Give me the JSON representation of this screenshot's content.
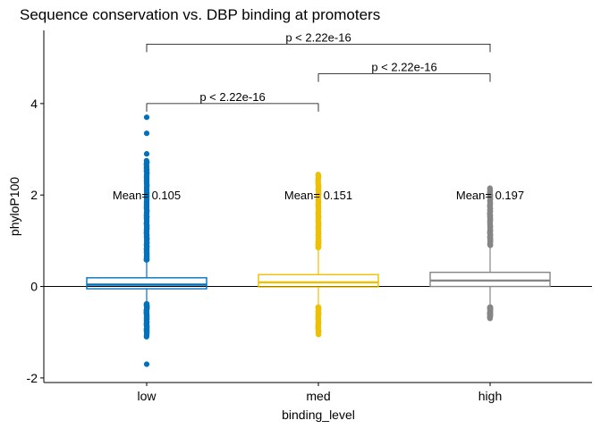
{
  "chart_data": {
    "type": "boxplot",
    "title": "Sequence conservation vs. DBP binding at promoters",
    "xlabel": "binding_level",
    "ylabel": "phyloP100",
    "ylim": [
      -2.1,
      5.6
    ],
    "yticks": [
      -2,
      0,
      2,
      4
    ],
    "ytick_labels": [
      "-2",
      "0",
      "2",
      "4"
    ],
    "reference_line": 0,
    "categories": [
      "low",
      "med",
      "high"
    ],
    "colors": [
      "#0072BD",
      "#EFC000",
      "#868686"
    ],
    "boxes": [
      {
        "name": "low",
        "q1": -0.05,
        "median": 0.04,
        "q3": 0.19,
        "whisker_low": -0.35,
        "whisker_high": 0.55,
        "outlier_low_range": [
          -1.1,
          -0.38
        ],
        "outlier_high_range": [
          0.58,
          2.75
        ],
        "extreme_outliers": [
          -1.7,
          2.9,
          3.35,
          3.7
        ]
      },
      {
        "name": "med",
        "q1": -0.01,
        "median": 0.09,
        "q3": 0.26,
        "whisker_low": -0.4,
        "whisker_high": 0.8,
        "outlier_low_range": [
          -1.05,
          -0.45
        ],
        "outlier_high_range": [
          0.85,
          2.45
        ],
        "extreme_outliers": []
      },
      {
        "name": "high",
        "q1": 0.0,
        "median": 0.13,
        "q3": 0.31,
        "whisker_low": -0.4,
        "whisker_high": 0.85,
        "outlier_low_range": [
          -0.7,
          -0.45
        ],
        "outlier_high_range": [
          0.9,
          2.15
        ],
        "extreme_outliers": []
      }
    ],
    "mean_labels": [
      {
        "category": "low",
        "text": "Mean= 0.105",
        "y": 2.0
      },
      {
        "category": "med",
        "text": "Mean= 0.151",
        "y": 2.0
      },
      {
        "category": "high",
        "text": "Mean= 0.197",
        "y": 2.0
      }
    ],
    "comparisons": [
      {
        "from": "low",
        "to": "med",
        "text": "p < 2.22e-16",
        "y": 4.0
      },
      {
        "from": "med",
        "to": "high",
        "text": "p < 2.22e-16",
        "y": 4.65
      },
      {
        "from": "low",
        "to": "high",
        "text": "p < 2.22e-16",
        "y": 5.3
      }
    ]
  }
}
